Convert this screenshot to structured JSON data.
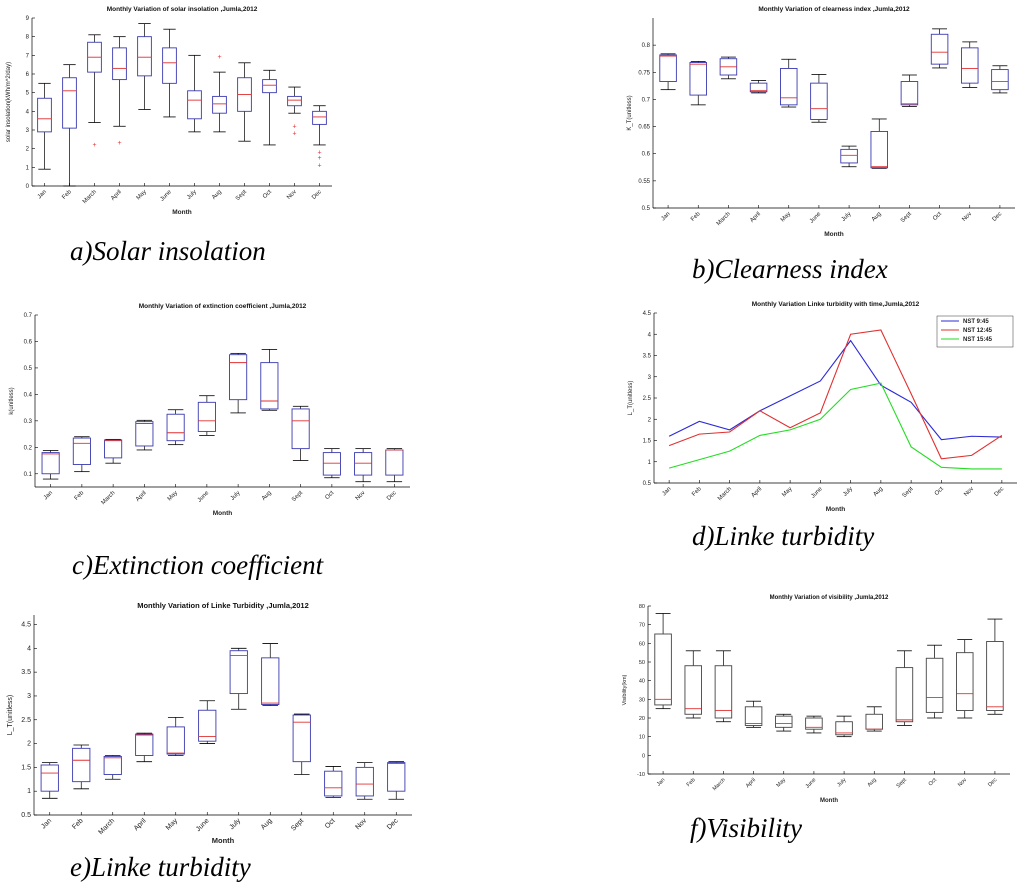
{
  "months": [
    "Jan",
    "Feb",
    "March",
    "April",
    "May",
    "June",
    "July",
    "Aug",
    "Sept",
    "Oct",
    "Nov",
    "Dec"
  ],
  "xlabel": "Month",
  "panels": [
    {
      "caption": "a)Solar insolation",
      "chart_data": {
        "type": "boxplot",
        "title": "Monthly Variation of solar insolation ,Jumla,2012",
        "xlabel": "Month",
        "ylabel": "solar insolation(kWh/m^2/day)",
        "ylim": [
          0,
          9
        ],
        "yticks": [
          0,
          1,
          2,
          3,
          4,
          5,
          6,
          7,
          8,
          9
        ],
        "boxes": [
          {
            "wlo": 0.9,
            "q1": 2.9,
            "med": 3.6,
            "q3": 4.7,
            "whi": 5.5,
            "outliers": []
          },
          {
            "wlo": 0.0,
            "q1": 3.1,
            "med": 5.1,
            "q3": 5.8,
            "whi": 6.5,
            "outliers": []
          },
          {
            "wlo": 3.4,
            "q1": 6.1,
            "med": 6.9,
            "q3": 7.7,
            "whi": 8.1,
            "outliers": [
              2.2
            ]
          },
          {
            "wlo": 3.2,
            "q1": 5.7,
            "med": 6.3,
            "q3": 7.4,
            "whi": 8.0,
            "outliers": [
              2.3
            ]
          },
          {
            "wlo": 4.1,
            "q1": 5.9,
            "med": 6.9,
            "q3": 8.0,
            "whi": 8.7,
            "outliers": []
          },
          {
            "wlo": 3.7,
            "q1": 5.5,
            "med": 6.6,
            "q3": 7.4,
            "whi": 8.4,
            "outliers": []
          },
          {
            "wlo": 2.9,
            "q1": 3.6,
            "med": 4.6,
            "q3": 5.1,
            "whi": 7.0,
            "outliers": []
          },
          {
            "wlo": 2.9,
            "q1": 3.9,
            "med": 4.4,
            "q3": 4.8,
            "whi": 6.1,
            "outliers": [
              6.9
            ]
          },
          {
            "wlo": 2.4,
            "q1": 4.0,
            "med": 4.9,
            "q3": 5.8,
            "whi": 6.6,
            "outliers": []
          },
          {
            "wlo": 2.2,
            "q1": 5.0,
            "med": 5.4,
            "q3": 5.7,
            "whi": 6.2,
            "outliers": []
          },
          {
            "wlo": 3.9,
            "q1": 4.3,
            "med": 4.6,
            "q3": 4.8,
            "whi": 5.3,
            "outliers": [
              3.2,
              2.8
            ]
          },
          {
            "wlo": 2.2,
            "q1": 3.3,
            "med": 3.7,
            "q3": 4.0,
            "whi": 4.3,
            "outliers": [
              1.8,
              1.5,
              1.1
            ]
          }
        ]
      }
    },
    {
      "caption": "b)Clearness index",
      "chart_data": {
        "type": "boxplot",
        "title": "Monthly Variation of clearness index ,Jumla,2012",
        "xlabel": "Month",
        "ylabel": "K_T(unitless)",
        "ylim": [
          0.5,
          0.85
        ],
        "yticks": [
          0.5,
          0.55,
          0.6,
          0.65,
          0.7,
          0.75,
          0.8
        ],
        "boxes": [
          {
            "wlo": 0.718,
            "q1": 0.733,
            "med": 0.78,
            "q3": 0.782,
            "whi": 0.784,
            "outliers": []
          },
          {
            "wlo": 0.69,
            "q1": 0.708,
            "med": 0.765,
            "q3": 0.768,
            "whi": 0.77,
            "outliers": []
          },
          {
            "wlo": 0.738,
            "q1": 0.745,
            "med": 0.76,
            "q3": 0.775,
            "whi": 0.778,
            "outliers": []
          },
          {
            "wlo": 0.712,
            "q1": 0.714,
            "med": 0.716,
            "q3": 0.73,
            "whi": 0.735,
            "outliers": []
          },
          {
            "wlo": 0.686,
            "q1": 0.69,
            "med": 0.703,
            "q3": 0.757,
            "whi": 0.774,
            "outliers": []
          },
          {
            "wlo": 0.658,
            "q1": 0.663,
            "med": 0.683,
            "q3": 0.73,
            "whi": 0.746,
            "outliers": []
          },
          {
            "wlo": 0.576,
            "q1": 0.583,
            "med": 0.597,
            "q3": 0.608,
            "whi": 0.614,
            "outliers": []
          },
          {
            "wlo": 0.573,
            "q1": 0.574,
            "med": 0.576,
            "q3": 0.641,
            "whi": 0.664,
            "outliers": []
          },
          {
            "wlo": 0.687,
            "q1": 0.69,
            "med": 0.692,
            "q3": 0.733,
            "whi": 0.745,
            "outliers": []
          },
          {
            "wlo": 0.758,
            "q1": 0.765,
            "med": 0.787,
            "q3": 0.82,
            "whi": 0.83,
            "outliers": []
          },
          {
            "wlo": 0.722,
            "q1": 0.73,
            "med": 0.757,
            "q3": 0.795,
            "whi": 0.806,
            "outliers": []
          },
          {
            "wlo": 0.712,
            "q1": 0.718,
            "med": 0.733,
            "q3": 0.755,
            "whi": 0.762,
            "outliers": []
          }
        ]
      }
    },
    {
      "caption": "c)Extinction coefficient",
      "chart_data": {
        "type": "boxplot",
        "title": "Monthly Variation of extinction coefficient ,Jumla,2012",
        "xlabel": "Month",
        "ylabel": "k(unitless)",
        "ylim": [
          0.05,
          0.7
        ],
        "yticks": [
          0.1,
          0.2,
          0.3,
          0.4,
          0.5,
          0.6,
          0.7
        ],
        "boxes": [
          {
            "wlo": 0.08,
            "q1": 0.1,
            "med": 0.175,
            "q3": 0.18,
            "whi": 0.188,
            "outliers": []
          },
          {
            "wlo": 0.108,
            "q1": 0.135,
            "med": 0.215,
            "q3": 0.235,
            "whi": 0.24,
            "outliers": []
          },
          {
            "wlo": 0.14,
            "q1": 0.16,
            "med": 0.225,
            "q3": 0.228,
            "whi": 0.23,
            "outliers": []
          },
          {
            "wlo": 0.19,
            "q1": 0.205,
            "med": 0.29,
            "q3": 0.297,
            "whi": 0.302,
            "outliers": []
          },
          {
            "wlo": 0.21,
            "q1": 0.225,
            "med": 0.255,
            "q3": 0.325,
            "whi": 0.342,
            "outliers": []
          },
          {
            "wlo": 0.245,
            "q1": 0.26,
            "med": 0.3,
            "q3": 0.37,
            "whi": 0.395,
            "outliers": []
          },
          {
            "wlo": 0.33,
            "q1": 0.38,
            "med": 0.52,
            "q3": 0.55,
            "whi": 0.555,
            "outliers": []
          },
          {
            "wlo": 0.34,
            "q1": 0.345,
            "med": 0.375,
            "q3": 0.52,
            "whi": 0.57,
            "outliers": []
          },
          {
            "wlo": 0.15,
            "q1": 0.195,
            "med": 0.3,
            "q3": 0.345,
            "whi": 0.355,
            "outliers": []
          },
          {
            "wlo": 0.085,
            "q1": 0.095,
            "med": 0.14,
            "q3": 0.18,
            "whi": 0.195,
            "outliers": []
          },
          {
            "wlo": 0.07,
            "q1": 0.095,
            "med": 0.14,
            "q3": 0.18,
            "whi": 0.195,
            "outliers": []
          },
          {
            "wlo": 0.07,
            "q1": 0.095,
            "med": 0.19,
            "q3": 0.19,
            "whi": 0.195,
            "outliers": []
          }
        ]
      }
    },
    {
      "caption": "d)Linke turbidity",
      "chart_data": {
        "type": "line",
        "title": "Monthly Variation Linke turbidity with time,Jumla,2012",
        "xlabel": "Month",
        "ylabel": "L_T(unitless)",
        "ylim": [
          0.5,
          4.5
        ],
        "yticks": [
          0.5,
          1,
          1.5,
          2,
          2.5,
          3,
          3.5,
          4,
          4.5
        ],
        "legend_position": "top-right",
        "series": [
          {
            "name": "NST 9:45",
            "color": "#2b2bd6",
            "values": [
              1.6,
              1.95,
              1.75,
              2.2,
              2.55,
              2.9,
              3.85,
              2.8,
              2.4,
              1.52,
              1.6,
              1.58
            ]
          },
          {
            "name": "NST 12:45",
            "color": "#e03030",
            "values": [
              1.38,
              1.65,
              1.7,
              2.2,
              1.8,
              2.15,
              4.0,
              4.1,
              2.6,
              1.07,
              1.15,
              1.62
            ]
          },
          {
            "name": "NST 15:45",
            "color": "#22dd22",
            "values": [
              0.85,
              1.05,
              1.25,
              1.62,
              1.75,
              2.0,
              2.7,
              2.85,
              1.35,
              0.87,
              0.83,
              0.83
            ]
          }
        ]
      }
    },
    {
      "caption": "e)Linke turbidity",
      "chart_data": {
        "type": "boxplot",
        "title": "Monthly Variation of Linke Turbidity ,Jumla,2012",
        "xlabel": "Month",
        "ylabel": "L_T(unitless)",
        "ylim": [
          0.5,
          4.7
        ],
        "yticks": [
          0.5,
          1,
          1.5,
          2,
          2.5,
          3,
          3.5,
          4,
          4.5
        ],
        "boxes": [
          {
            "wlo": 0.85,
            "q1": 1.0,
            "med": 1.38,
            "q3": 1.55,
            "whi": 1.6,
            "outliers": []
          },
          {
            "wlo": 1.05,
            "q1": 1.2,
            "med": 1.65,
            "q3": 1.9,
            "whi": 1.97,
            "outliers": []
          },
          {
            "wlo": 1.25,
            "q1": 1.35,
            "med": 1.7,
            "q3": 1.73,
            "whi": 1.75,
            "outliers": []
          },
          {
            "wlo": 1.62,
            "q1": 1.75,
            "med": 2.18,
            "q3": 2.2,
            "whi": 2.22,
            "outliers": []
          },
          {
            "wlo": 1.75,
            "q1": 1.78,
            "med": 1.8,
            "q3": 2.35,
            "whi": 2.55,
            "outliers": []
          },
          {
            "wlo": 2.0,
            "q1": 2.05,
            "med": 2.15,
            "q3": 2.7,
            "whi": 2.9,
            "outliers": []
          },
          {
            "wlo": 2.72,
            "q1": 3.05,
            "med": 3.85,
            "q3": 3.95,
            "whi": 4.0,
            "outliers": []
          },
          {
            "wlo": 2.8,
            "q1": 2.82,
            "med": 2.85,
            "q3": 3.8,
            "whi": 4.1,
            "outliers": []
          },
          {
            "wlo": 1.35,
            "q1": 1.62,
            "med": 2.45,
            "q3": 2.6,
            "whi": 2.62,
            "outliers": []
          },
          {
            "wlo": 0.87,
            "q1": 0.9,
            "med": 1.07,
            "q3": 1.42,
            "whi": 1.52,
            "outliers": []
          },
          {
            "wlo": 0.83,
            "q1": 0.9,
            "med": 1.15,
            "q3": 1.5,
            "whi": 1.6,
            "outliers": []
          },
          {
            "wlo": 0.83,
            "q1": 1.0,
            "med": 1.58,
            "q3": 1.6,
            "whi": 1.62,
            "outliers": []
          }
        ]
      }
    },
    {
      "caption": "f)Visibility",
      "chart_data": {
        "type": "boxplot",
        "title": "Monthly Variation of visibility ,Jumla,2012",
        "xlabel": "Month",
        "ylabel": "Visibility(km)",
        "ylim": [
          -10,
          80
        ],
        "yticks": [
          -10,
          0,
          10,
          20,
          30,
          40,
          50,
          60,
          70,
          80
        ],
        "boxes": [
          {
            "wlo": 25,
            "q1": 27,
            "med": 30,
            "q3": 65,
            "whi": 76,
            "outliers": []
          },
          {
            "wlo": 20,
            "q1": 22,
            "med": 25,
            "q3": 48,
            "whi": 56,
            "outliers": []
          },
          {
            "wlo": 18,
            "q1": 20,
            "med": 24,
            "q3": 48,
            "whi": 56,
            "outliers": []
          },
          {
            "wlo": 15,
            "q1": 16,
            "med": 17,
            "q3": 26,
            "whi": 29,
            "outliers": []
          },
          {
            "wlo": 13,
            "q1": 15,
            "med": 17,
            "q3": 21,
            "whi": 22,
            "outliers": []
          },
          {
            "wlo": 12,
            "q1": 14,
            "med": 15,
            "q3": 20,
            "whi": 21,
            "outliers": []
          },
          {
            "wlo": 10,
            "q1": 11,
            "med": 12,
            "q3": 18,
            "whi": 21,
            "outliers": []
          },
          {
            "wlo": 13,
            "q1": 14,
            "med": 14,
            "q3": 22,
            "whi": 26,
            "outliers": []
          },
          {
            "wlo": 16,
            "q1": 18,
            "med": 19,
            "q3": 47,
            "whi": 56,
            "outliers": []
          },
          {
            "wlo": 20,
            "q1": 23,
            "med": 31,
            "q3": 52,
            "whi": 59,
            "outliers": []
          },
          {
            "wlo": 20,
            "q1": 24,
            "med": 33,
            "q3": 55,
            "whi": 62,
            "outliers": []
          },
          {
            "wlo": 22,
            "q1": 24,
            "med": 26,
            "q3": 61,
            "whi": 73,
            "outliers": []
          }
        ]
      }
    }
  ]
}
